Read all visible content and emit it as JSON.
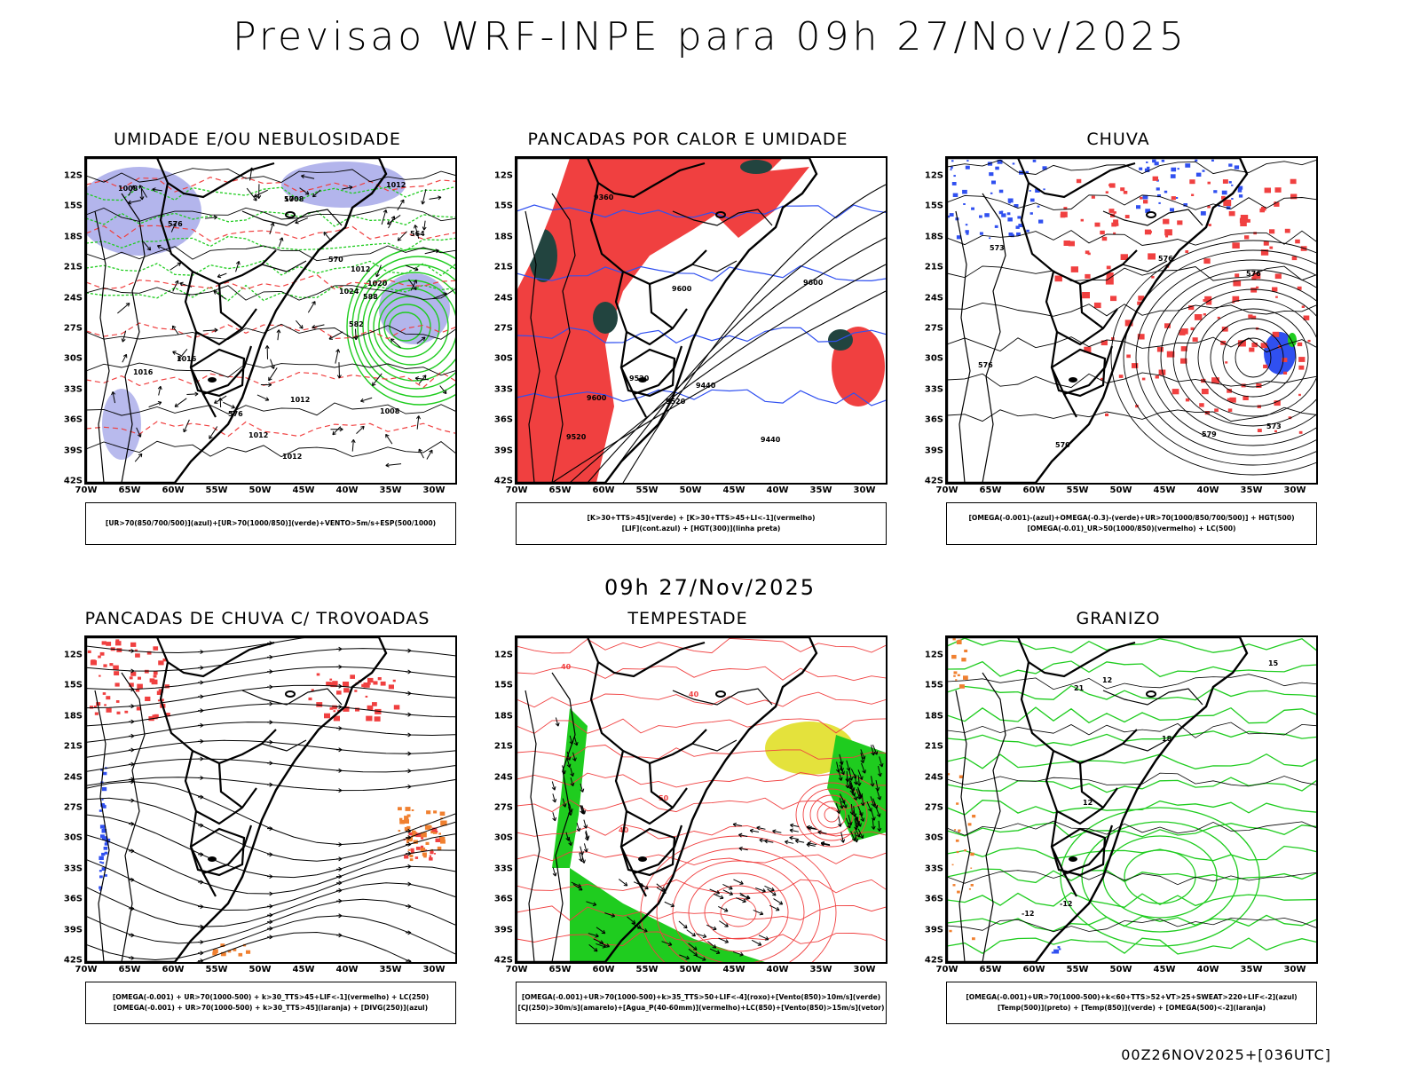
{
  "header": {
    "title": "Previsao WRF-INPE  para 09h 27/Nov/2025"
  },
  "middle": {
    "time_label": "09h 27/Nov/2025"
  },
  "footer": {
    "stamp": "00Z26NOV2025+[036UTC]"
  },
  "axes": {
    "lat_ticks": [
      "12S",
      "15S",
      "18S",
      "21S",
      "24S",
      "27S",
      "30S",
      "33S",
      "36S",
      "39S",
      "42S"
    ],
    "lon_ticks": [
      "70W",
      "65W",
      "60W",
      "55W",
      "50W",
      "45W",
      "40W",
      "35W",
      "30W"
    ]
  },
  "panels": [
    {
      "title": "UMIDADE E/OU NEBULOSIDADE",
      "legend": [
        "[UR>70(850/700/500)](azul)+[UR>70(1000/850)](verde)+VENTO>5m/s+ESP(500/1000)"
      ],
      "contour_labels": [
        "1012",
        "1012",
        "1012",
        "1008",
        "1016",
        "1016",
        "1012",
        "1020",
        "1008",
        "1008",
        "1012",
        "1024",
        "576",
        "576",
        "570",
        "570",
        "564",
        "588",
        "582"
      ]
    },
    {
      "title": "PANCADAS POR CALOR E UMIDADE",
      "legend": [
        "[K>30+TTS>45](verde) + [K>30+TTS>45+LI<-1](vermelho)",
        "[LIF](cont.azul) + [HGT(300)](linha preta)"
      ],
      "contour_labels": [
        "9600",
        "9600",
        "9600",
        "9520",
        "9520",
        "9440",
        "9440",
        "9360",
        "9520"
      ]
    },
    {
      "title": "CHUVA",
      "legend": [
        "[OMEGA(-0.001)-(azul)+OMEGA(-0.3)-(verde)+UR>70(1000/850/700/500)] + HGT(500)",
        "[OMEGA(-0.01)_UR>50(1000/850)(vermelho) + LC(500)"
      ],
      "contour_labels": [
        "576",
        "576",
        "573",
        "570",
        "576",
        "579",
        "573"
      ]
    },
    {
      "title": "PANCADAS DE CHUVA C/ TROVOADAS",
      "legend": [
        "[OMEGA(-0.001) + UR>70(1000-500) + k>30_TTS>45+LIF<-1](vermelho) + LC(250)",
        "[OMEGA(-0.001) + UR>70(1000-500) + k>30_TTS>45](laranja) + [DIVG(250)](azul)"
      ],
      "contour_labels": []
    },
    {
      "title": "TEMPESTADE",
      "legend": [
        "[OMEGA(-0.001)+UR>70(1000-500)+k>35_TTS>50+LIF<-4](roxo)+[Vento(850)>10m/s](verde)",
        "[CJ(250)>30m/s](amarelo)+[Agua_P(40-60mm)](vermelho)+LC(850)+[Vento(850)>15m/s](vetor)"
      ],
      "contour_labels": [
        "40",
        "40",
        "50",
        "40"
      ]
    },
    {
      "title": "GRANIZO",
      "legend": [
        "[OMEGA(-0.001)+UR>70(1000-500)+k<60+TTS>52+VT>25+SWEAT>220+LIF<-2](azul)",
        "[Temp(500)](preto) + [Temp(850)](verde) + [OMEGA(500)<-2](laranja)"
      ],
      "contour_labels": [
        "-12",
        "-12",
        "12",
        "12",
        "15",
        "18",
        "21"
      ]
    }
  ],
  "colors": {
    "blue_shade": "#9a9ce6",
    "green": "#1fcc1f",
    "red": "#f04040",
    "dark_teal": "#22443f",
    "yellow": "#e4e23c",
    "orange": "#f08030",
    "blue_contour": "#3050f0"
  }
}
